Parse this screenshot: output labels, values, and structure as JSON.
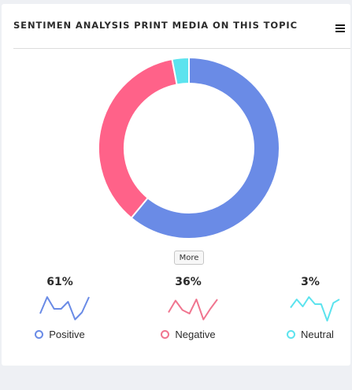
{
  "widget": {
    "title": "SENTIMEN ANALYSIS PRINT MEDIA ON THIS TOPIC",
    "menu_icon": "hamburger-icon",
    "more_label": "More"
  },
  "chart_data": {
    "type": "pie",
    "donut": true,
    "title": "SENTIMEN ANALYSIS PRINT MEDIA ON THIS TOPIC",
    "categories": [
      "Positive",
      "Negative",
      "Neutral"
    ],
    "values": [
      61,
      36,
      3
    ],
    "colors": [
      "#6a8be6",
      "#ff6289",
      "#5ce3ee"
    ],
    "legend_placement": "bottom"
  },
  "stats": [
    {
      "label": "Positive",
      "value_text": "61%",
      "color": "#6a8be6",
      "trend": [
        0.3,
        1.0,
        0.5,
        0.5,
        0.8,
        0.05,
        0.35,
        1.0
      ]
    },
    {
      "label": "Negative",
      "value_text": "36%",
      "color": "#f0758f",
      "trend": [
        0.35,
        0.85,
        0.45,
        0.3,
        0.9,
        0.05,
        0.5,
        0.9
      ]
    },
    {
      "label": "Neutral",
      "value_text": "3%",
      "color": "#5ce3ee",
      "trend": [
        0.55,
        0.9,
        0.6,
        1.0,
        0.7,
        0.7,
        0.0,
        0.75,
        0.9
      ]
    }
  ]
}
